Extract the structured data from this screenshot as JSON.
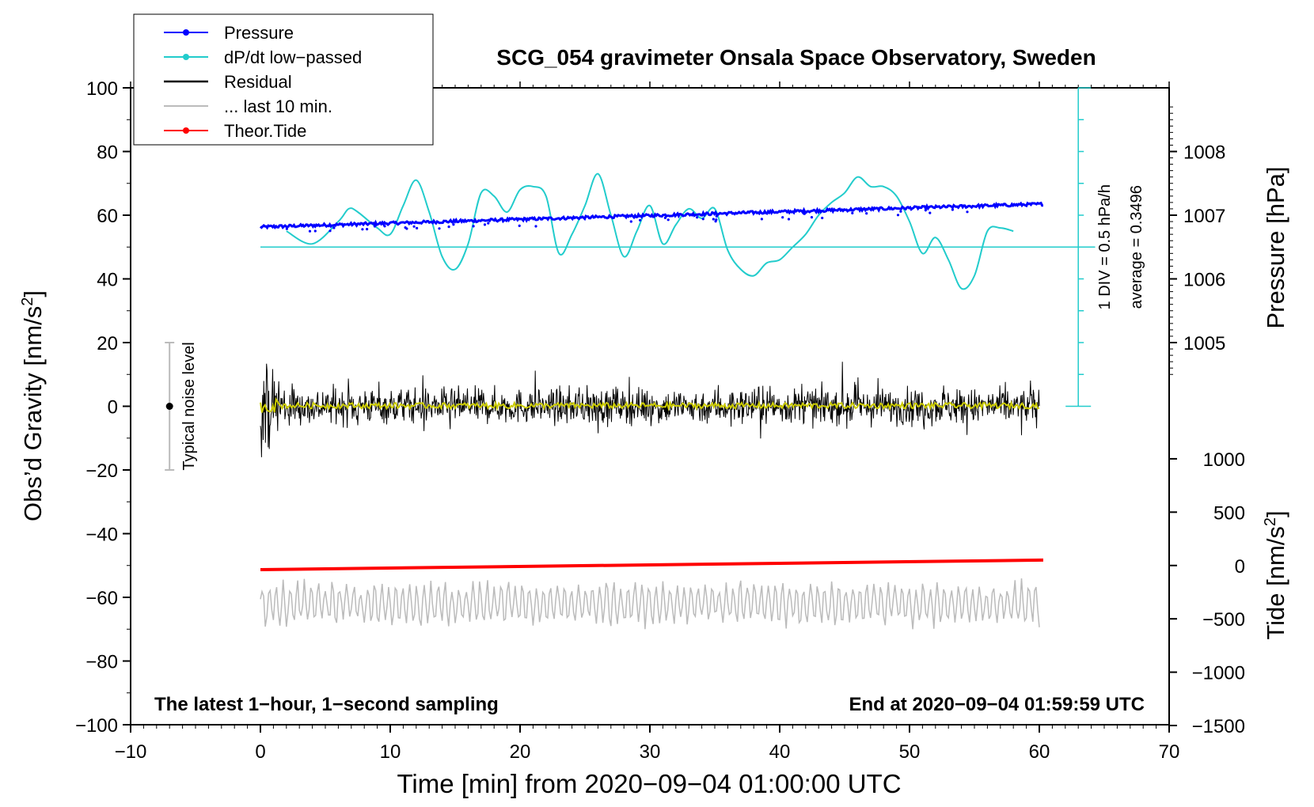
{
  "chart_data": {
    "type": "line",
    "title": "SCG_054 gravimeter Onsala Space Observatory, Sweden",
    "xlabel": "Time [min] from 2020−09−04 01:00:00 UTC",
    "ylabel_left": "Obs’d Gravity [nm/s",
    "ylabel_left_suffix": "]",
    "ylabel_exponent": "2",
    "ylabel_right_pressure": "Pressure [hPa]",
    "ylabel_right_tide": "Tide [nm/s",
    "ylabel_right_tide_suffix": "]",
    "xlim": [
      -10,
      70
    ],
    "ylim": [
      -100,
      100
    ],
    "x_ticks": [
      {
        "value": -10,
        "label": "−10"
      },
      {
        "value": 0,
        "label": "0"
      },
      {
        "value": 10,
        "label": "10"
      },
      {
        "value": 20,
        "label": "20"
      },
      {
        "value": 30,
        "label": "30"
      },
      {
        "value": 40,
        "label": "40"
      },
      {
        "value": 50,
        "label": "50"
      },
      {
        "value": 60,
        "label": "60"
      },
      {
        "value": 70,
        "label": "70"
      }
    ],
    "y_ticks": [
      {
        "value": 100,
        "label": "100"
      },
      {
        "value": 80,
        "label": "80"
      },
      {
        "value": 60,
        "label": "60"
      },
      {
        "value": 40,
        "label": "40"
      },
      {
        "value": 20,
        "label": "20"
      },
      {
        "value": 0,
        "label": "0"
      },
      {
        "value": -20,
        "label": "−20"
      },
      {
        "value": -40,
        "label": "−40"
      },
      {
        "value": -60,
        "label": "−60"
      },
      {
        "value": -80,
        "label": "−80"
      },
      {
        "value": -100,
        "label": "−100"
      }
    ],
    "pressure_axis": {
      "ticks": [
        {
          "value": 1008,
          "label": "1008"
        },
        {
          "value": 1007,
          "label": "1007"
        },
        {
          "value": 1006,
          "label": "1006"
        },
        {
          "value": 1005,
          "label": "1005"
        }
      ],
      "ref_value": 1007,
      "ref_y": 60,
      "gravity_per_hpa": 20
    },
    "tide_axis": {
      "ticks": [
        {
          "value": 1000,
          "label": "1000"
        },
        {
          "value": 500,
          "label": "500"
        },
        {
          "value": 0,
          "label": "0"
        },
        {
          "value": -500,
          "label": "−500"
        },
        {
          "value": -1000,
          "label": "−1000"
        },
        {
          "value": -1500,
          "label": "−1500"
        }
      ],
      "ref_value": 0,
      "ref_y": -50,
      "gravity_per_unit": 0.0335
    },
    "legend": [
      {
        "label": "Pressure",
        "color": "#0000ff",
        "marker": true
      },
      {
        "label": "dP/dt low−passed",
        "color": "#22cccc",
        "marker": true
      },
      {
        "label": "Residual",
        "color": "#000000",
        "marker": false
      },
      {
        "label": "... last 10 min.",
        "color": "#bbbbbb",
        "marker": false
      },
      {
        "label": "Theor.Tide",
        "color": "#ff0000",
        "marker": true
      }
    ],
    "legend_position": "top-left",
    "series": {
      "pressure": {
        "name": "Pressure",
        "color": "#0000ff",
        "x_range": [
          0,
          60.3
        ],
        "y_start": 56.3,
        "y_end": 63.5
      },
      "dpdt": {
        "name": "dP/dt low-passed",
        "color": "#22cccc",
        "baseline": 50,
        "points": [
          [
            2,
            55
          ],
          [
            4,
            51
          ],
          [
            6,
            58
          ],
          [
            6.8,
            62
          ],
          [
            7.5,
            61
          ],
          [
            9,
            56
          ],
          [
            10,
            54
          ],
          [
            11,
            63
          ],
          [
            12,
            71
          ],
          [
            13,
            61
          ],
          [
            14,
            47
          ],
          [
            15,
            43
          ],
          [
            16,
            51
          ],
          [
            17,
            67
          ],
          [
            18,
            66
          ],
          [
            19,
            61
          ],
          [
            20,
            68
          ],
          [
            21,
            69
          ],
          [
            22,
            66
          ],
          [
            23,
            48
          ],
          [
            24,
            54
          ],
          [
            25,
            63
          ],
          [
            26,
            73
          ],
          [
            27,
            60
          ],
          [
            28,
            47
          ],
          [
            29,
            55
          ],
          [
            30,
            63
          ],
          [
            31,
            51
          ],
          [
            32,
            57
          ],
          [
            33,
            62
          ],
          [
            34,
            59
          ],
          [
            35,
            62
          ],
          [
            36,
            49
          ],
          [
            37,
            43
          ],
          [
            38,
            41
          ],
          [
            39,
            45
          ],
          [
            40,
            46
          ],
          [
            41,
            50
          ],
          [
            42,
            54
          ],
          [
            43,
            60
          ],
          [
            44,
            64
          ],
          [
            45,
            67
          ],
          [
            46,
            72
          ],
          [
            47,
            69
          ],
          [
            48,
            69
          ],
          [
            49,
            66
          ],
          [
            50,
            58
          ],
          [
            51,
            48
          ],
          [
            52,
            53
          ],
          [
            53,
            46
          ],
          [
            54,
            37
          ],
          [
            55,
            41
          ],
          [
            56,
            55
          ],
          [
            57,
            56
          ],
          [
            58,
            55
          ]
        ]
      },
      "residual": {
        "name": "Residual",
        "color": "#000000",
        "x_range": [
          0,
          60
        ]
      },
      "smoothed": {
        "name": "Residual smoothed",
        "color": "#cccc00",
        "x_range": [
          0,
          60
        ]
      },
      "last10": {
        "name": "... last 10 min.",
        "color": "#bbbbbb",
        "x_range": [
          0,
          60
        ],
        "center": -62
      },
      "tide": {
        "name": "Theor.Tide",
        "color": "#ff0000",
        "x_range": [
          0,
          60.3
        ],
        "y_start": -51.3,
        "y_end": -48.3
      }
    },
    "dpdt_scale": {
      "label": "1 DIV = 0.5 hPa/h",
      "average_label": "average = 0.3496",
      "x": 63,
      "y_top": 100,
      "y_bottom": 0,
      "divisions": 10
    },
    "noise_indicator": {
      "label": "Typical noise level",
      "x": -7,
      "center": 0,
      "half_range": 20
    },
    "annotation_left": "The latest 1−hour, 1−second sampling",
    "annotation_right": "End at 2020−09−04 01:59:59 UTC"
  }
}
